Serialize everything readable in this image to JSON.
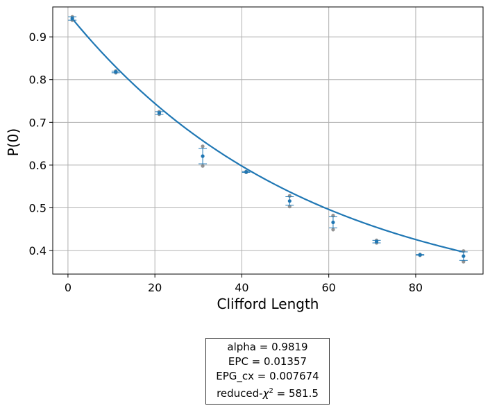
{
  "chart_data": {
    "type": "scatter",
    "xlabel": "Clifford Length",
    "ylabel": "P(0)",
    "xlim": [
      -3.5,
      95.5
    ],
    "ylim": [
      0.345,
      0.97
    ],
    "xticks": [
      "0",
      "20",
      "40",
      "60",
      "80"
    ],
    "yticks": [
      "0.4",
      "0.5",
      "0.6",
      "0.7",
      "0.8",
      "0.9"
    ],
    "grid": true,
    "colors": {
      "fit": "#1f77b4",
      "mean": "#1f77b4",
      "raw": "#808080",
      "grid": "#b0b0b0"
    },
    "mean_points": {
      "x": [
        1,
        11,
        21,
        31,
        41,
        51,
        61,
        71,
        81,
        91
      ],
      "y": [
        0.943,
        0.818,
        0.722,
        0.621,
        0.584,
        0.516,
        0.466,
        0.421,
        0.39,
        0.387
      ],
      "err": [
        0.004,
        0.002,
        0.003,
        0.018,
        0.001,
        0.01,
        0.013,
        0.003,
        0.001,
        0.01
      ]
    },
    "raw_points": {
      "x": [
        1,
        1,
        11,
        11,
        21,
        21,
        31,
        31,
        41,
        41,
        51,
        51,
        61,
        61,
        71,
        71,
        81,
        81,
        91,
        91
      ],
      "y": [
        0.947,
        0.939,
        0.82,
        0.816,
        0.725,
        0.719,
        0.644,
        0.598,
        0.585,
        0.583,
        0.528,
        0.503,
        0.482,
        0.449,
        0.424,
        0.418,
        0.391,
        0.389,
        0.399,
        0.374
      ]
    },
    "fit_curve": {
      "model": "a*alpha^x + b",
      "a": 0.689,
      "alpha": 0.9819,
      "b": 0.266
    }
  },
  "stats": {
    "alpha": "alpha =  0.9819",
    "epc": "EPC =  0.01357",
    "epg": "EPG_cx =  0.007674",
    "chi_prefix": "reduced-",
    "chi_symbol": "χ",
    "chi_exp": "2",
    "chi_value": " =  581.5"
  }
}
